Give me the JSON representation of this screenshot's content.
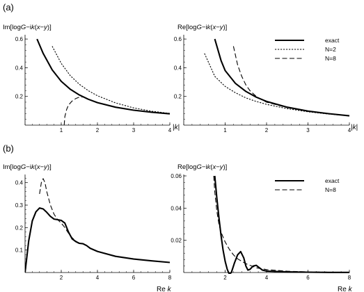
{
  "panels": [
    {
      "tag": "(a)"
    },
    {
      "tag": "(b)"
    }
  ],
  "chart_data": [
    {
      "id": "a-left",
      "type": "line",
      "ylabel_parts": [
        "Im[log",
        "G",
        "−i",
        "k",
        "(",
        "x",
        "−",
        "y",
        ")]"
      ],
      "xlabel_parts": [
        "|",
        "k",
        "|"
      ],
      "xlim": [
        0,
        4
      ],
      "ylim": [
        0,
        0.62
      ],
      "xticks": [
        1,
        2,
        3,
        4
      ],
      "xtick_labels": [
        "1",
        "2",
        "3",
        "4"
      ],
      "yticks": [
        0.2,
        0.4,
        0.6
      ],
      "ytick_labels": [
        "0.2",
        "0.4",
        "0.6"
      ],
      "series": [
        {
          "name": "exact",
          "style": "solid",
          "x": [
            0.33,
            0.5,
            0.75,
            1.0,
            1.25,
            1.5,
            1.75,
            2.0,
            2.5,
            3.0,
            3.5,
            4.0
          ],
          "y": [
            0.6,
            0.5,
            0.385,
            0.305,
            0.25,
            0.21,
            0.18,
            0.157,
            0.125,
            0.104,
            0.09,
            0.079
          ]
        },
        {
          "name": "N=2",
          "style": "dotted",
          "x": [
            0.75,
            1.0,
            1.25,
            1.5,
            1.75,
            2.0,
            2.5,
            3.0,
            3.5,
            4.0
          ],
          "y": [
            0.55,
            0.43,
            0.345,
            0.285,
            0.24,
            0.205,
            0.155,
            0.12,
            0.097,
            0.082
          ]
        },
        {
          "name": "N=8",
          "style": "dashed",
          "x": [
            1.08,
            1.1,
            1.15,
            1.2,
            1.3,
            1.4,
            1.5,
            1.6
          ],
          "y": [
            0.0,
            0.06,
            0.11,
            0.14,
            0.168,
            0.185,
            0.195,
            0.196
          ]
        }
      ]
    },
    {
      "id": "a-right",
      "type": "line",
      "ylabel_parts": [
        "Re[log",
        "G",
        "−i",
        "k",
        "(",
        "x",
        "−",
        "y",
        ")]"
      ],
      "xlabel_parts": [
        "|",
        "k",
        "|"
      ],
      "xlim": [
        0,
        4
      ],
      "ylim": [
        0,
        0.62
      ],
      "xticks": [
        1,
        2,
        3,
        4
      ],
      "xtick_labels": [
        "1",
        "2",
        "3",
        "4"
      ],
      "yticks": [
        0.2,
        0.4,
        0.6
      ],
      "ytick_labels": [
        "0.2",
        "0.4",
        "0.6"
      ],
      "legend_position": "top-right",
      "series": [
        {
          "name": "exact",
          "style": "solid",
          "x": [
            0.75,
            0.9,
            1.0,
            1.25,
            1.5,
            1.75,
            2.0,
            2.5,
            3.0,
            3.5,
            4.0
          ],
          "y": [
            0.6,
            0.45,
            0.38,
            0.29,
            0.235,
            0.195,
            0.165,
            0.125,
            0.098,
            0.08,
            0.065
          ]
        },
        {
          "name": "N=2",
          "style": "dotted",
          "x": [
            0.5,
            0.75,
            1.0,
            1.25,
            1.5,
            1.75,
            2.0,
            2.5,
            3.0,
            3.5,
            4.0
          ],
          "y": [
            0.5,
            0.34,
            0.27,
            0.225,
            0.19,
            0.165,
            0.145,
            0.115,
            0.093,
            0.077,
            0.065
          ]
        },
        {
          "name": "N=8",
          "style": "dashed",
          "x": [
            1.2,
            1.3,
            1.4,
            1.5,
            1.6,
            1.75,
            1.9,
            2.0,
            2.5,
            3.0,
            3.5,
            4.0
          ],
          "y": [
            0.55,
            0.42,
            0.34,
            0.28,
            0.24,
            0.2,
            0.175,
            0.16,
            0.122,
            0.098,
            0.08,
            0.066
          ]
        }
      ]
    },
    {
      "id": "b-left",
      "type": "line",
      "ylabel_parts": [
        "Im[log",
        "G",
        "−i",
        "k",
        "(",
        "x",
        "−",
        "y",
        ")]"
      ],
      "xlabel_parts": [
        "Re ",
        "k"
      ],
      "xlim": [
        0,
        8
      ],
      "ylim": [
        0,
        0.43
      ],
      "xticks": [
        2,
        4,
        6,
        8
      ],
      "xtick_labels": [
        "2",
        "4",
        "6",
        "8"
      ],
      "yticks": [
        0.1,
        0.2,
        0.3,
        0.4
      ],
      "ytick_labels": [
        "0.1",
        "0.2",
        "0.3",
        "0.4"
      ],
      "series": [
        {
          "name": "exact",
          "style": "solid",
          "x": [
            0.0,
            0.2,
            0.4,
            0.6,
            0.8,
            1.0,
            1.2,
            1.4,
            1.6,
            1.8,
            2.0,
            2.2,
            2.4,
            2.6,
            2.8,
            3.0,
            3.2,
            3.4,
            3.6,
            4.0,
            5.0,
            6.0,
            7.0,
            8.0
          ],
          "y": [
            0.0,
            0.14,
            0.23,
            0.27,
            0.287,
            0.283,
            0.268,
            0.25,
            0.238,
            0.235,
            0.232,
            0.22,
            0.18,
            0.15,
            0.138,
            0.13,
            0.128,
            0.12,
            0.108,
            0.094,
            0.072,
            0.06,
            0.052,
            0.045
          ]
        },
        {
          "name": "N=8",
          "style": "dashed",
          "x": [
            0.8,
            0.9,
            1.0,
            1.1,
            1.2,
            1.4,
            1.6,
            1.8,
            2.0,
            2.2,
            2.4,
            2.6,
            2.8,
            3.0
          ],
          "y": [
            0.35,
            0.4,
            0.418,
            0.4,
            0.36,
            0.3,
            0.26,
            0.235,
            0.22,
            0.2,
            0.175,
            0.155,
            0.14,
            0.13
          ]
        }
      ]
    },
    {
      "id": "b-right",
      "type": "line",
      "ylabel_parts": [
        "Re[log",
        "G",
        "−i",
        "k",
        "(",
        "x",
        "−",
        "y",
        ")]"
      ],
      "xlabel_parts": [
        "Re ",
        "k"
      ],
      "xlim": [
        0,
        8
      ],
      "ylim": [
        0,
        0.06
      ],
      "xticks": [
        2,
        4,
        6,
        8
      ],
      "xtick_labels": [
        "2",
        "4",
        "6",
        "8"
      ],
      "yticks": [
        0.02,
        0.04,
        0.06
      ],
      "ytick_labels": [
        "0.02",
        "0.04",
        "0.06"
      ],
      "legend_position": "top-right",
      "series": [
        {
          "name": "exact",
          "style": "solid",
          "x": [
            1.5,
            1.6,
            1.7,
            1.8,
            1.9,
            2.0,
            2.1,
            2.2,
            2.3,
            2.45,
            2.6,
            2.75,
            2.9,
            3.0,
            3.1,
            3.2,
            3.35,
            3.5,
            3.65,
            3.8,
            4.0,
            4.5,
            5.0,
            6.0,
            7.0,
            8.0
          ],
          "y": [
            0.06,
            0.046,
            0.034,
            0.023,
            0.014,
            0.007,
            0.002,
            -0.001,
            0.0,
            0.006,
            0.011,
            0.013,
            0.009,
            0.004,
            0.0015,
            0.002,
            0.004,
            0.0045,
            0.003,
            0.0015,
            0.0009,
            0.0006,
            0.0004,
            0.0002,
            0.0001,
            0.0001
          ]
        },
        {
          "name": "N=8",
          "style": "dashed",
          "x": [
            1.45,
            1.5,
            1.6,
            1.7,
            1.8,
            2.0,
            2.2,
            2.4,
            2.6,
            2.8,
            3.0,
            3.5,
            4.0,
            5.0,
            6.0,
            7.0,
            8.0
          ],
          "y": [
            0.06,
            0.05,
            0.038,
            0.03,
            0.025,
            0.019,
            0.0145,
            0.011,
            0.0085,
            0.007,
            0.0055,
            0.003,
            0.0018,
            0.0008,
            0.0004,
            0.0002,
            0.0001
          ]
        }
      ]
    }
  ]
}
